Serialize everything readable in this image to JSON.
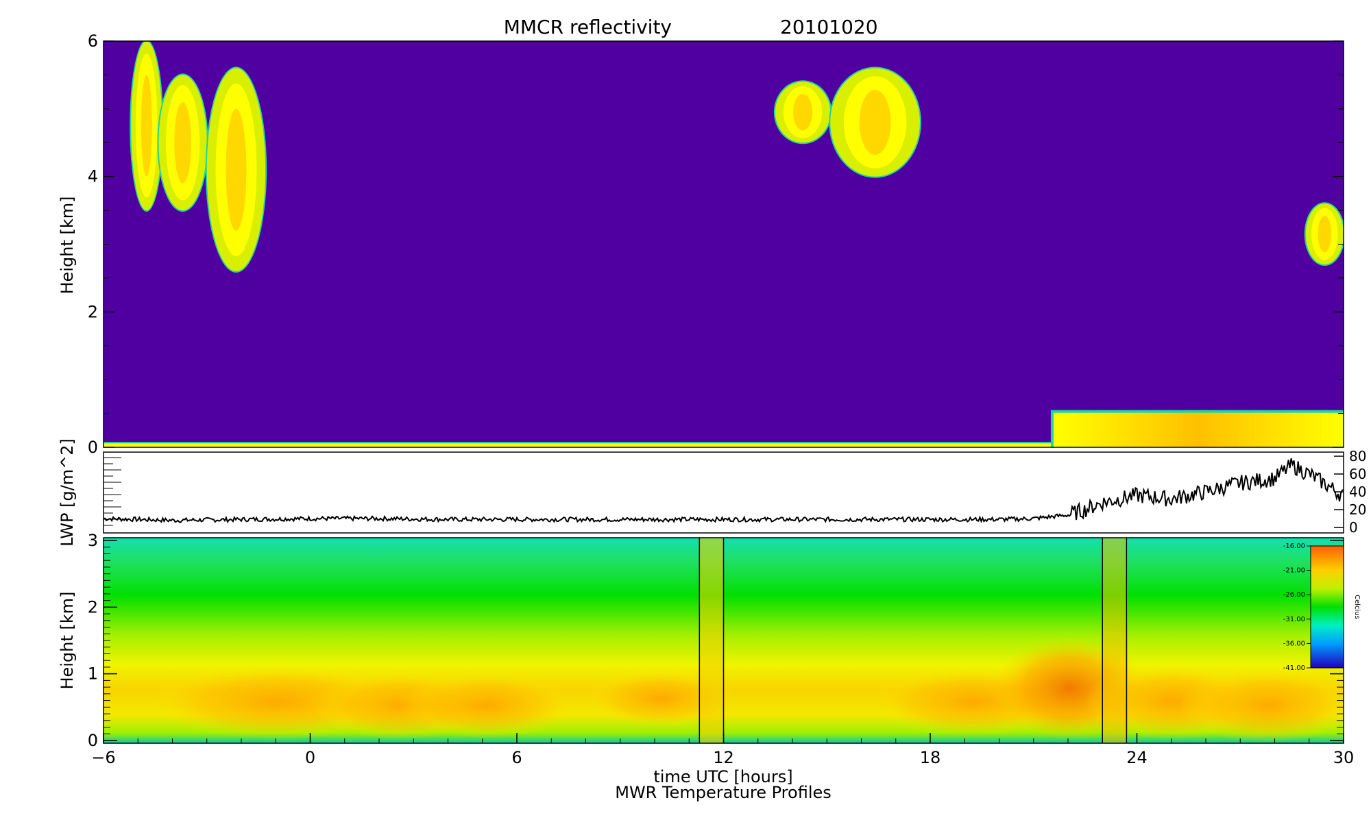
{
  "chart_data": [
    {
      "type": "heatmap",
      "title": "MMCR reflectivity",
      "date": "20101020",
      "xlabel": "",
      "ylabel": "Height [km]",
      "xlim": [
        -6,
        30
      ],
      "ylim": [
        0,
        6
      ],
      "yticks": [
        "0",
        "2",
        "4",
        "6"
      ],
      "background_color": "#5000a0",
      "echo_colors": [
        "#1fd4a0",
        "#d8f000",
        "#ffff00",
        "#ffc800"
      ],
      "echo_regions": [
        {
          "t_start": -5.2,
          "t_end": -4.3,
          "h_bottom": 3.5,
          "h_top": 6.0
        },
        {
          "t_start": -4.4,
          "t_end": -3.0,
          "h_bottom": 3.5,
          "h_top": 5.5
        },
        {
          "t_start": -3.0,
          "t_end": -1.3,
          "h_bottom": 2.6,
          "h_top": 5.6
        },
        {
          "t_start": 13.5,
          "t_end": 15.1,
          "h_bottom": 4.5,
          "h_top": 5.4
        },
        {
          "t_start": 15.1,
          "t_end": 17.7,
          "h_bottom": 4.0,
          "h_top": 5.6
        },
        {
          "t_start": 28.9,
          "t_end": 30.0,
          "h_bottom": 2.7,
          "h_top": 3.6
        },
        {
          "t_start": 21.5,
          "t_end": 30.0,
          "h_bottom": 0.0,
          "h_top": 0.55
        }
      ]
    },
    {
      "type": "line",
      "xlabel": "",
      "ylabel": "LWP [g/m^2]",
      "xlim": [
        -6,
        30
      ],
      "ylim": [
        0,
        80
      ],
      "yticks": [
        "0",
        "20",
        "40",
        "60",
        "80"
      ],
      "series": [
        {
          "x": [
            -6,
            -4,
            -2,
            0,
            2,
            4,
            6,
            8,
            10,
            12,
            14,
            16,
            18,
            20,
            21,
            22,
            22.5,
            23,
            24,
            25,
            26,
            27,
            28,
            28.5,
            29,
            29.5,
            30
          ],
          "y": [
            10,
            8,
            9,
            10,
            10,
            9,
            9,
            9,
            9,
            9,
            9,
            9,
            9,
            9,
            10,
            14,
            20,
            28,
            36,
            32,
            40,
            50,
            55,
            70,
            60,
            48,
            35
          ]
        }
      ]
    },
    {
      "type": "heatmap",
      "title": "MWR Temperature Profiles",
      "xlabel": "time UTC [hours]",
      "ylabel": "Height [km]",
      "xlim": [
        -6,
        30
      ],
      "ylim": [
        0,
        3
      ],
      "xticks": [
        "-6",
        "0",
        "6",
        "12",
        "18",
        "24",
        "30"
      ],
      "yticks": [
        "0",
        "1",
        "2",
        "3"
      ],
      "gap_markers": [
        11.3,
        12.0,
        23.0,
        23.7
      ],
      "colorbar": {
        "label": "Celcius",
        "ticks": [
          "-16.00",
          "-21.00",
          "-26.00",
          "-31.00",
          "-36.00",
          "-41.00"
        ],
        "range": [
          -41,
          -16
        ]
      }
    }
  ]
}
